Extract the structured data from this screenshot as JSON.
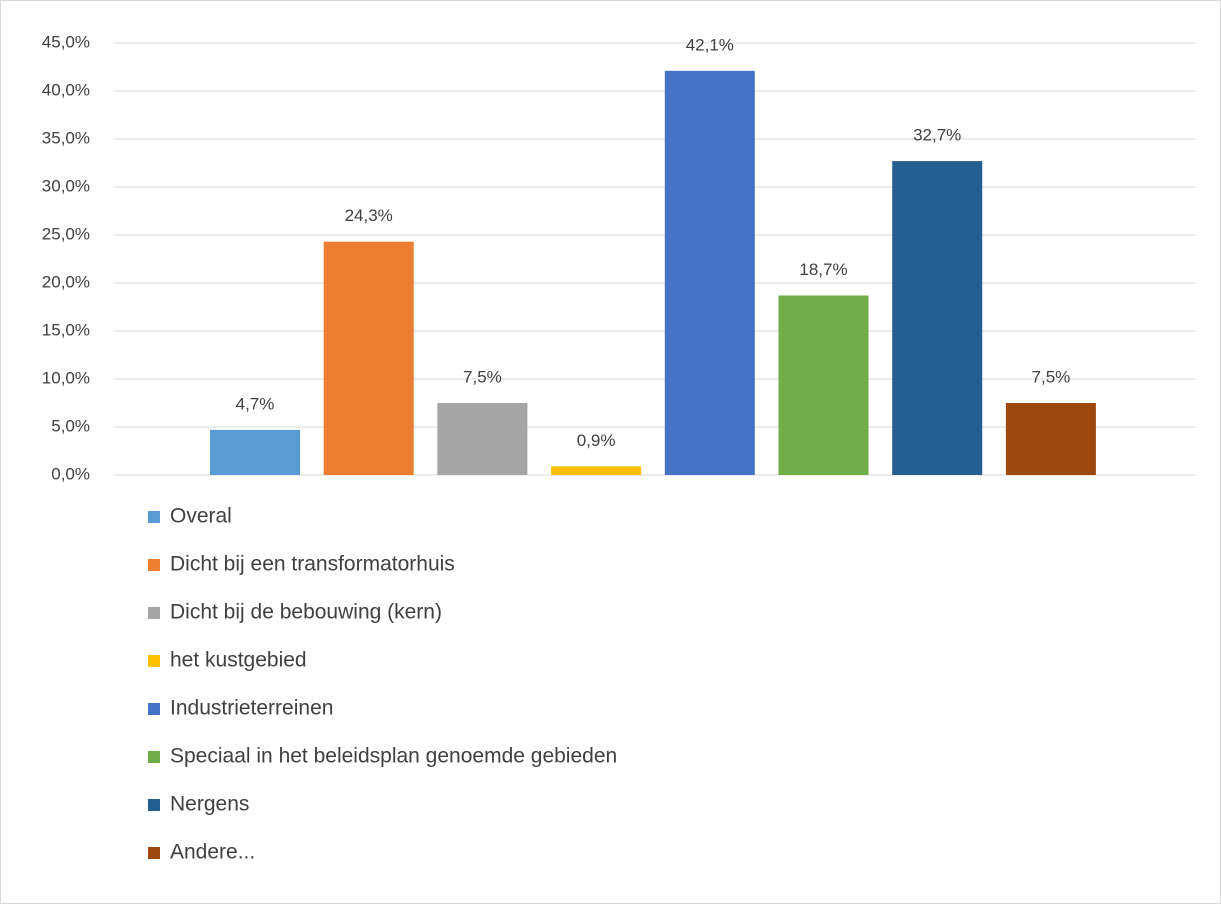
{
  "chart_data": {
    "type": "bar",
    "categories": [
      null
    ],
    "series": [
      {
        "name": "Overal",
        "color": "#5b9bd5",
        "values": [
          4.7
        ],
        "value_labels": [
          "4,7%"
        ]
      },
      {
        "name": "Dicht bij een transformatorhuis",
        "color": "#ed7d31",
        "values": [
          24.3
        ],
        "value_labels": [
          "24,3%"
        ]
      },
      {
        "name": "Dicht bij de bebouwing (kern)",
        "color": "#a5a5a5",
        "values": [
          7.5
        ],
        "value_labels": [
          "7,5%"
        ]
      },
      {
        "name": "het kustgebied",
        "color": "#ffc000",
        "values": [
          0.9
        ],
        "value_labels": [
          "0,9%"
        ]
      },
      {
        "name": "Industrieterreinen",
        "color": "#4472c4",
        "values": [
          42.1
        ],
        "value_labels": [
          "42,1%"
        ]
      },
      {
        "name": "Speciaal in het beleidsplan genoemde gebieden",
        "color": "#70ad47",
        "values": [
          18.7
        ],
        "value_labels": [
          "18,7%"
        ]
      },
      {
        "name": "Nergens",
        "color": "#255e91",
        "values": [
          32.7
        ],
        "value_labels": [
          "32,7%"
        ]
      },
      {
        "name": "Andere...",
        "color": "#9e480e",
        "values": [
          7.5
        ],
        "value_labels": [
          "7,5%"
        ]
      }
    ],
    "ylim": [
      0,
      45
    ],
    "yticks": [
      {
        "value": 0,
        "label": "0,0%"
      },
      {
        "value": 5,
        "label": "5,0%"
      },
      {
        "value": 10,
        "label": "10,0%"
      },
      {
        "value": 15,
        "label": "15,0%"
      },
      {
        "value": 20,
        "label": "20,0%"
      },
      {
        "value": 25,
        "label": "25,0%"
      },
      {
        "value": 30,
        "label": "30,0%"
      },
      {
        "value": 35,
        "label": "35,0%"
      },
      {
        "value": 40,
        "label": "40,0%"
      },
      {
        "value": 45,
        "label": "45,0%"
      }
    ],
    "grid": true,
    "legend": "bottom"
  }
}
